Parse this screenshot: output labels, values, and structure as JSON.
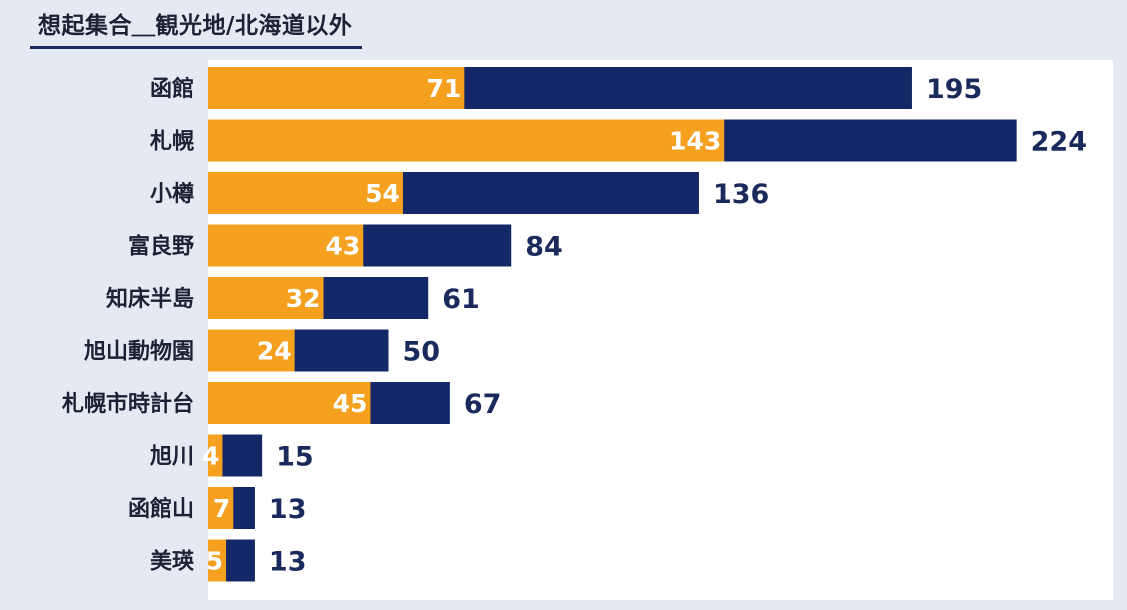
{
  "title": "想起集合＿観光地/北海道以外",
  "colors": {
    "total": "#142766",
    "sub": "#f5a01f",
    "background": "#e4e9f2",
    "plot": "#ffffff"
  },
  "chart_data": {
    "type": "bar",
    "orientation": "horizontal",
    "categories": [
      "函館",
      "札幌",
      "小樽",
      "富良野",
      "知床半島",
      "旭山動物園",
      "札幌市時計台",
      "旭川",
      "函館山",
      "美瑛"
    ],
    "series": [
      {
        "values": [
          195,
          224,
          136,
          84,
          61,
          50,
          67,
          15,
          13,
          13
        ]
      },
      {
        "values": [
          71,
          143,
          54,
          43,
          32,
          24,
          45,
          4,
          7,
          5
        ]
      }
    ],
    "xlim": [
      0,
      270
    ],
    "legend": "none",
    "grid": false
  }
}
